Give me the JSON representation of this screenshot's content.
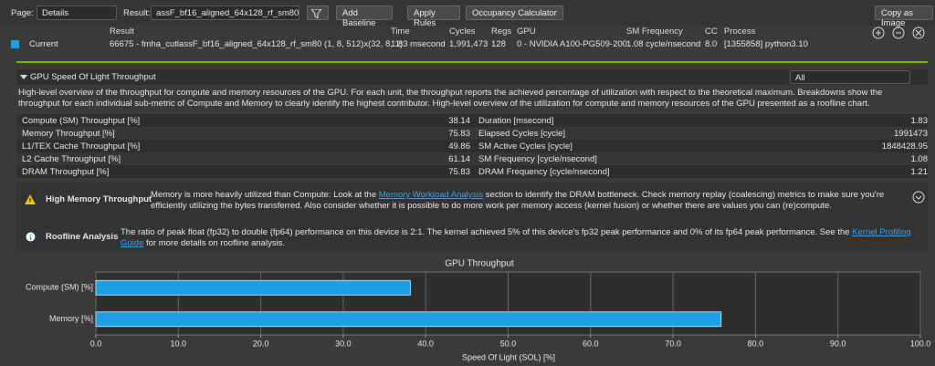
{
  "toolbar": {
    "page_label": "Page:",
    "page": "Details",
    "result_label": "Result:",
    "result": "assF_bf16_aligned_64x128_rf_sm80",
    "buttons": [
      "Add Baseline",
      "Apply Rules",
      "Occupancy Calculator"
    ],
    "copy": "Copy as Image"
  },
  "results": {
    "headers": [
      "Result",
      "Time",
      "Cycles",
      "Regs",
      "GPU",
      "SM Frequency",
      "CC",
      "Process"
    ],
    "row_label": "Current",
    "row": [
      "66675 - fmha_cutlassF_bf16_aligned_64x128_rf_sm80 (1, 8, 512)x(32, 8, 1)",
      "1.83 msecond",
      "1,991,473",
      "128",
      "0 - NVIDIA A100-PG509-200",
      "1.08 cycle/nsecond",
      "8.0",
      "[1355858] python3.10"
    ]
  },
  "section": {
    "title": "GPU Speed Of Light Throughput",
    "filter": "All",
    "description": "High-level overview of the throughput for compute and memory resources of the GPU. For each unit, the throughput reports the achieved percentage of utilization with respect to the theoretical maximum. Breakdowns show the throughput for each individual sub-metric of Compute and Memory to clearly identify the highest contributor. High-level overview of the utilization for compute and memory resources of the GPU presented as a roofline chart.",
    "metrics": [
      [
        "Compute (SM) Throughput [%]",
        "38.14",
        "Duration [msecond]",
        "1.83"
      ],
      [
        "Memory Throughput [%]",
        "75.83",
        "Elapsed Cycles [cycle]",
        "1991473"
      ],
      [
        "L1/TEX Cache Throughput [%]",
        "49.86",
        "SM Active Cycles [cycle]",
        "1848428.95"
      ],
      [
        "L2 Cache Throughput [%]",
        "61.14",
        "SM Frequency [cycle/nsecond]",
        "1.08"
      ],
      [
        "DRAM Throughput [%]",
        "75.83",
        "DRAM Frequency [cycle/nsecond]",
        "1.21"
      ]
    ]
  },
  "notes": [
    {
      "title": "High Memory Throughput",
      "text_before": "Memory is more heavily utilized than Compute: Look at the ",
      "link": "Memory Workload Analysis",
      "text_after": " section to identify the DRAM bottleneck. Check memory replay (coalescing) metrics to make sure you're efficiently utilizing the bytes transferred. Also consider whether it is possible to do more work per memory access (kernel fusion) or whether there are values you can (re)compute."
    },
    {
      "title": "Roofline Analysis",
      "text_before": "The ratio of peak float (fp32) to double (fp64) performance on this device is 2:1. The kernel achieved 5% of this device's fp32 peak performance and 0% of its fp64 peak performance. See the ",
      "link": "Kernel Profiling Guide",
      "text_after": " for more details on roofline analysis."
    }
  ],
  "chart_data": {
    "type": "bar",
    "orientation": "horizontal",
    "title": "GPU Throughput",
    "categories": [
      "Compute (SM) [%]",
      "Memory [%]"
    ],
    "values": [
      38.14,
      75.83
    ],
    "color": "#1e9fe3",
    "x_label": "Speed Of Light (SOL) [%]",
    "xlim": [
      0,
      100
    ],
    "xticks": [
      {
        "value": 0,
        "label": "0.0"
      },
      {
        "value": 10,
        "label": "10.0"
      },
      {
        "value": 20,
        "label": "20.0"
      },
      {
        "value": 30,
        "label": "30.0"
      },
      {
        "value": 40,
        "label": "40.0"
      },
      {
        "value": 50,
        "label": "50.0"
      },
      {
        "value": 60,
        "label": "60.0"
      },
      {
        "value": 70,
        "label": "70.0"
      },
      {
        "value": 80,
        "label": "80.0"
      },
      {
        "value": 90,
        "label": "90.0"
      },
      {
        "value": 100,
        "label": "100.0"
      }
    ],
    "grid": true
  }
}
